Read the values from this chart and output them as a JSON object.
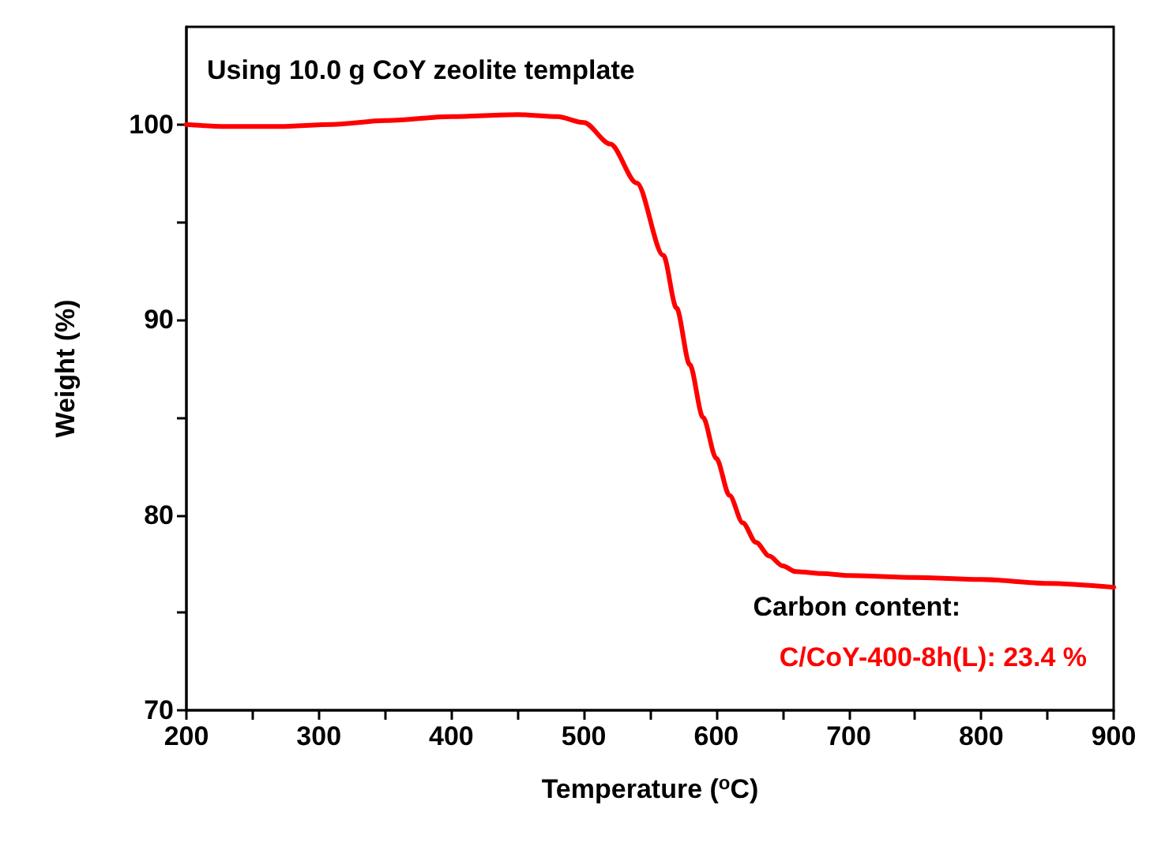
{
  "chart_data": {
    "type": "line",
    "xlabel": "Temperature ($^{o}$C)",
    "ylabel": "Weight (%)",
    "annotations": [
      "Using 10.0 g CoY zeolite template",
      "Carbon content:",
      "C/CoY-400-8h(L): 23.4 %"
    ],
    "series": [
      {
        "color": "#ff0000",
        "x": [
          200,
          230,
          270,
          310,
          350,
          400,
          450,
          480,
          500,
          520,
          540,
          560,
          570,
          580,
          590,
          600,
          610,
          620,
          630,
          640,
          650,
          660,
          680,
          700,
          750,
          800,
          850,
          900
        ],
        "values": [
          100,
          99.9,
          99.9,
          100.0,
          100.2,
          100.4,
          100.5,
          100.4,
          100.1,
          99.0,
          97.0,
          93.3,
          90.6,
          87.7,
          85.0,
          82.9,
          81.0,
          79.6,
          78.6,
          77.9,
          77.4,
          77.1,
          77.0,
          76.9,
          76.8,
          76.7,
          76.5,
          76.3
        ]
      }
    ],
    "xlim": [
      200,
      900
    ],
    "xticks": [
      200,
      {
        "value": 250,
        "label": null
      },
      300,
      {
        "value": 350,
        "label": null
      },
      400,
      {
        "value": 450,
        "label": null
      },
      500,
      {
        "value": 550,
        "label": null
      },
      600,
      {
        "value": 650,
        "label": null
      },
      700,
      {
        "value": 750,
        "label": null
      },
      800,
      {
        "value": 850,
        "label": null
      },
      900
    ],
    "ylim": [
      70,
      105
    ],
    "yticks": [
      70,
      {
        "value": 75,
        "label": null
      },
      80,
      {
        "value": 85,
        "label": null
      },
      90,
      {
        "value": 95,
        "label": null
      },
      100
    ],
    "grid": false,
    "marker": "none",
    "line_style": "solid"
  }
}
